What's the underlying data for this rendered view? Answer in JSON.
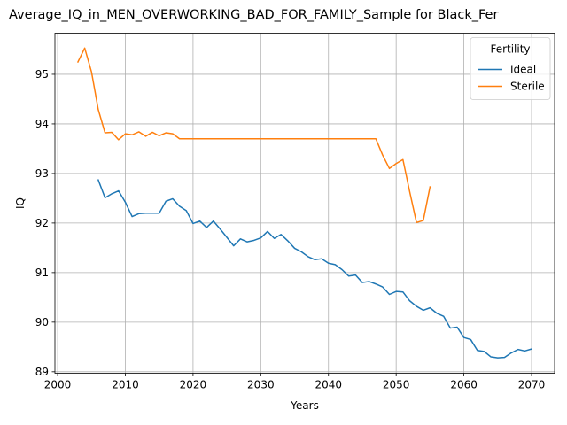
{
  "chart_data": {
    "type": "line",
    "title": "Average_IQ_in_MEN_OVERWORKING_BAD_FOR_FAMILY_Sample for Black_Fer",
    "xlabel": "Years",
    "ylabel": "IQ",
    "xlim": [
      1999.6,
      2073.4
    ],
    "ylim": [
      88.97,
      95.83
    ],
    "x_ticks": [
      2000,
      2010,
      2020,
      2030,
      2040,
      2050,
      2060,
      2070
    ],
    "x_tick_labels": [
      "2000",
      "2010",
      "2020",
      "2030",
      "2040",
      "2050",
      "2060",
      "2070"
    ],
    "y_ticks": [
      89,
      90,
      91,
      92,
      93,
      94,
      95
    ],
    "y_tick_labels": [
      "89",
      "90",
      "91",
      "92",
      "93",
      "94",
      "95"
    ],
    "grid": true,
    "legend": {
      "title": "Fertility",
      "placement": "top-right"
    },
    "series": [
      {
        "name": "Ideal",
        "color": "#1f77b4",
        "x": [
          2006,
          2007,
          2008,
          2009,
          2010,
          2011,
          2012,
          2013,
          2014,
          2015,
          2016,
          2017,
          2018,
          2019,
          2020,
          2021,
          2022,
          2023,
          2024,
          2025,
          2026,
          2027,
          2028,
          2029,
          2030,
          2031,
          2032,
          2033,
          2034,
          2035,
          2036,
          2037,
          2038,
          2039,
          2040,
          2041,
          2042,
          2043,
          2044,
          2045,
          2046,
          2047,
          2048,
          2049,
          2050,
          2051,
          2052,
          2053,
          2054,
          2055,
          2056,
          2057,
          2058,
          2059,
          2060,
          2061,
          2062,
          2063,
          2064,
          2065,
          2066,
          2067,
          2068,
          2069,
          2070
        ],
        "values": [
          92.87,
          92.51,
          92.59,
          92.65,
          92.42,
          92.13,
          92.19,
          92.2,
          92.2,
          92.2,
          92.44,
          92.49,
          92.34,
          92.25,
          91.99,
          92.04,
          91.91,
          92.04,
          91.88,
          91.71,
          91.54,
          91.68,
          91.62,
          91.65,
          91.7,
          91.83,
          91.69,
          91.77,
          91.64,
          91.49,
          91.42,
          91.32,
          91.26,
          91.28,
          91.19,
          91.16,
          91.06,
          90.93,
          90.95,
          90.8,
          90.82,
          90.77,
          90.71,
          90.56,
          90.62,
          90.61,
          90.43,
          90.32,
          90.24,
          90.29,
          90.18,
          90.12,
          89.88,
          89.9,
          89.69,
          89.65,
          89.43,
          89.41,
          89.3,
          89.28,
          89.29,
          89.38,
          89.45,
          89.42,
          89.46
        ]
      },
      {
        "name": "Sterile",
        "color": "#ff7f0e",
        "x": [
          2003,
          2004,
          2005,
          2006,
          2007,
          2008,
          2009,
          2010,
          2011,
          2012,
          2013,
          2014,
          2015,
          2016,
          2017,
          2018,
          2019,
          2020,
          2021,
          2022,
          2023,
          2024,
          2025,
          2026,
          2027,
          2028,
          2029,
          2030,
          2031,
          2032,
          2033,
          2034,
          2035,
          2036,
          2037,
          2038,
          2039,
          2040,
          2041,
          2042,
          2043,
          2044,
          2045,
          2046,
          2047,
          2048,
          2049,
          2050,
          2051,
          2052,
          2053,
          2054,
          2055
        ],
        "values": [
          95.25,
          95.53,
          95.05,
          94.29,
          93.82,
          93.83,
          93.68,
          93.8,
          93.78,
          93.84,
          93.75,
          93.83,
          93.76,
          93.82,
          93.8,
          93.7,
          93.7,
          93.7,
          93.7,
          93.7,
          93.7,
          93.7,
          93.7,
          93.7,
          93.7,
          93.7,
          93.7,
          93.7,
          93.7,
          93.7,
          93.7,
          93.7,
          93.7,
          93.7,
          93.7,
          93.7,
          93.7,
          93.7,
          93.7,
          93.7,
          93.7,
          93.7,
          93.7,
          93.7,
          93.7,
          93.37,
          93.1,
          93.2,
          93.28,
          92.63,
          92.01,
          92.05,
          92.73
        ]
      }
    ]
  }
}
